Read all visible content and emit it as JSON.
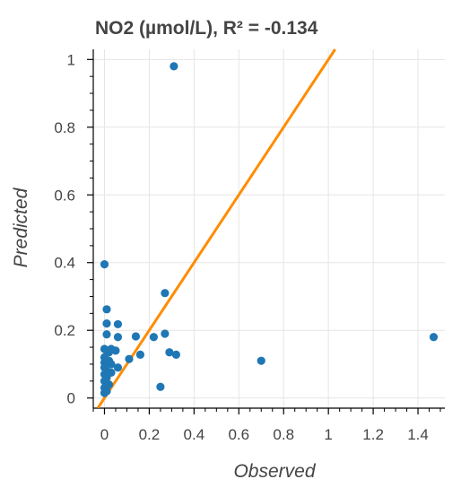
{
  "chart_data": {
    "type": "scatter",
    "title": "NO2 (µmol/L), R² = -0.134",
    "xlabel": "Observed",
    "ylabel": "Predicted",
    "xlim": [
      -0.05,
      1.52
    ],
    "ylim": [
      -0.03,
      1.03
    ],
    "x_ticks": [
      0,
      0.2,
      0.4,
      0.6,
      0.8,
      1,
      1.2,
      1.4
    ],
    "x_tick_labels": [
      "0",
      "0.2",
      "0.4",
      "0.6",
      "0.8",
      "1",
      "1.2",
      "1.4"
    ],
    "y_ticks": [
      0,
      0.2,
      0.4,
      0.6,
      0.8,
      1
    ],
    "y_tick_labels": [
      "0",
      "0.2",
      "0.4",
      "0.6",
      "0.8",
      "1"
    ],
    "grid": true,
    "point_color": "#1f77b4",
    "line_color": "#ff8c00",
    "points": [
      {
        "x": 0.31,
        "y": 0.98
      },
      {
        "x": 0.0,
        "y": 0.395
      },
      {
        "x": 0.27,
        "y": 0.31
      },
      {
        "x": 0.01,
        "y": 0.262
      },
      {
        "x": 0.01,
        "y": 0.22
      },
      {
        "x": 0.06,
        "y": 0.218
      },
      {
        "x": 0.27,
        "y": 0.19
      },
      {
        "x": 0.01,
        "y": 0.188
      },
      {
        "x": 0.14,
        "y": 0.182
      },
      {
        "x": 0.22,
        "y": 0.18
      },
      {
        "x": 0.06,
        "y": 0.18
      },
      {
        "x": 1.47,
        "y": 0.18
      },
      {
        "x": 0.0,
        "y": 0.145
      },
      {
        "x": 0.03,
        "y": 0.145
      },
      {
        "x": 0.01,
        "y": 0.14
      },
      {
        "x": 0.05,
        "y": 0.14
      },
      {
        "x": 0.02,
        "y": 0.135
      },
      {
        "x": 0.29,
        "y": 0.135
      },
      {
        "x": 0.16,
        "y": 0.128
      },
      {
        "x": 0.32,
        "y": 0.128
      },
      {
        "x": 0.0,
        "y": 0.12
      },
      {
        "x": 0.11,
        "y": 0.115
      },
      {
        "x": 0.02,
        "y": 0.11
      },
      {
        "x": 0.7,
        "y": 0.11
      },
      {
        "x": 0.0,
        "y": 0.105
      },
      {
        "x": 0.03,
        "y": 0.1
      },
      {
        "x": 0.06,
        "y": 0.09
      },
      {
        "x": 0.0,
        "y": 0.09
      },
      {
        "x": 0.01,
        "y": 0.08
      },
      {
        "x": 0.03,
        "y": 0.075
      },
      {
        "x": 0.0,
        "y": 0.07
      },
      {
        "x": 0.01,
        "y": 0.06
      },
      {
        "x": 0.0,
        "y": 0.05
      },
      {
        "x": 0.02,
        "y": 0.04
      },
      {
        "x": 0.01,
        "y": 0.035
      },
      {
        "x": 0.25,
        "y": 0.033
      },
      {
        "x": 0.0,
        "y": 0.03
      },
      {
        "x": 0.01,
        "y": 0.02
      },
      {
        "x": 0.0,
        "y": 0.015
      }
    ],
    "reference_line": {
      "from": [
        -0.03,
        -0.03
      ],
      "to": [
        1.03,
        1.03
      ]
    }
  }
}
